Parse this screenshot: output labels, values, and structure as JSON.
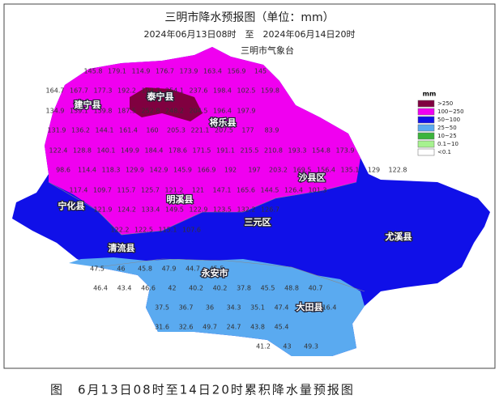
{
  "header": {
    "title": "三明市降水预报图（单位：mm）",
    "subtitle": "2024年06月13日08时　至　2024年06月14日20时",
    "issuer": "三明市气象台"
  },
  "legend": {
    "unit": "mm",
    "items": [
      {
        "label": ">250",
        "color": "#800040"
      },
      {
        "label": "100~250",
        "color": "#f000f0"
      },
      {
        "label": "50~100",
        "color": "#1010e8"
      },
      {
        "label": "25~50",
        "color": "#5aaaf0"
      },
      {
        "label": "10~25",
        "color": "#3cb43c"
      },
      {
        "label": "0.1~10",
        "color": "#a6f28f"
      },
      {
        "label": "<0.1",
        "color": "#ffffff"
      }
    ]
  },
  "counties": [
    "泰宁县",
    "建宁县",
    "将乐县",
    "沙县区",
    "宁化县",
    "明溪县",
    "三元区",
    "清流县",
    "尤溪县",
    "永安市",
    "大田县"
  ],
  "grid_values": [
    [
      "145.8",
      "179.1",
      "114.9",
      "176.7",
      "173.9",
      "163.4",
      "156.9",
      "145"
    ],
    [
      "164.7",
      "167.7",
      "177.3",
      "192.2",
      "193.7",
      "254.1",
      "237.6",
      "198.4",
      "102.5",
      "159.8"
    ],
    [
      "134.9",
      "139.1",
      "159.8",
      "187.5",
      "252.8",
      "248.2",
      "204.5",
      "196.4",
      "197.9"
    ],
    [
      "131.9",
      "136.2",
      "144.1",
      "161.4",
      "160",
      "205.3",
      "221.1",
      "207.5",
      "177",
      "83.9"
    ],
    [
      "122.4",
      "128.8",
      "140.1",
      "149.9",
      "184.4",
      "178.6",
      "171.5",
      "191.1",
      "215.5",
      "210.8",
      "193.3",
      "154.8",
      "173.9"
    ],
    [
      "98.6",
      "114.4",
      "118.3",
      "129.9",
      "142.9",
      "145.9",
      "166.9",
      "192",
      "197",
      "203.2",
      "169.5",
      "156.4",
      "135.1",
      "129",
      "122.8"
    ],
    [
      "117.4",
      "109.7",
      "115.7",
      "125.7",
      "121.2",
      "121",
      "147.1",
      "165.6",
      "144.5",
      "126.4",
      "101.3"
    ],
    [
      "121.9",
      "124.2",
      "133.4",
      "149.5",
      "122.9",
      "123.5",
      "132.2",
      "126.7"
    ],
    [
      "122.2",
      "122.5",
      "115.1",
      "107.6"
    ],
    [
      "47.5",
      "46",
      "45.8",
      "47.9",
      "44.7",
      "45.5"
    ],
    [
      "46.4",
      "43.4",
      "46.6",
      "42",
      "40.2",
      "40.2",
      "37.8",
      "45.5",
      "48.8",
      "40.7"
    ],
    [
      "37.5",
      "36.7",
      "36",
      "34.3",
      "35.1",
      "47.4",
      "43",
      "16.4"
    ],
    [
      "31.6",
      "32.6",
      "49.7",
      "24.7",
      "43.8",
      "45.4"
    ],
    [
      "41.2",
      "43",
      "49.3"
    ]
  ],
  "caption": "图　6月13日08时至14日20时累积降水量预报图"
}
